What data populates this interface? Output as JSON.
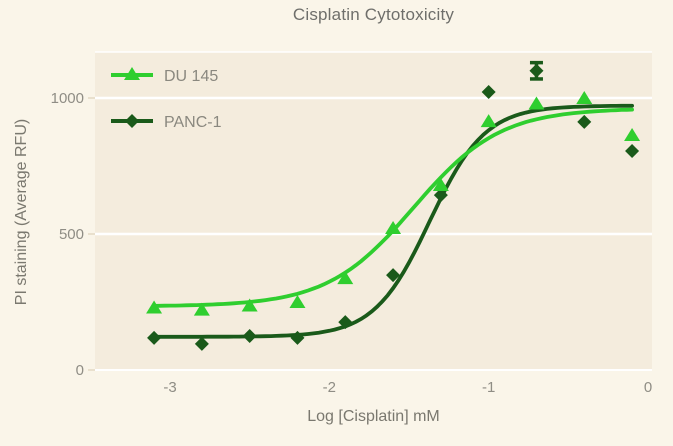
{
  "chart_data": {
    "type": "line",
    "title": "Cisplatin Cytotoxicity",
    "xlabel": "Log [Cisplatin] mM",
    "ylabel": "PI staining (Average RFU)",
    "xlim": [
      -3.47,
      0.03
    ],
    "ylim": [
      0,
      1170
    ],
    "x_ticks": [
      "-3",
      "-2",
      "-1",
      "0"
    ],
    "x_tick_values": [
      -3,
      -2,
      -1,
      0
    ],
    "y_ticks": [
      "0",
      "500",
      "1000"
    ],
    "y_tick_values": [
      0,
      500,
      1000
    ],
    "grid": true,
    "legend_position": "inside-top-left",
    "colors": {
      "page_background": "#faf5e9",
      "plot_background": "#f4ecdd",
      "gridline": "#ffffff",
      "title_text": "#6f6f6b",
      "tick_text": "#8f8d85",
      "legend_text": "#8a887f"
    },
    "series": [
      {
        "name": "PANC-1",
        "marker": "diamond",
        "color": "#1a5a1a",
        "x": [
          -3.1,
          -2.8,
          -2.5,
          -2.2,
          -1.9,
          -1.6,
          -1.3,
          -1.0,
          -0.7,
          -0.4,
          -0.1
        ],
        "values": [
          118,
          96,
          125,
          118,
          176,
          349,
          643,
          1022,
          1100,
          912,
          805
        ],
        "error_bars": [
          {
            "x": -0.7,
            "value": 1100,
            "plus_minus": 30
          }
        ],
        "fit_curve": {
          "model": "4PL",
          "bottom": 122,
          "top": 972,
          "log_ec50": -1.37,
          "hill": 2.5,
          "x_range": [
            -3.1,
            -0.1
          ]
        }
      },
      {
        "name": "DU 145",
        "marker": "triangle",
        "color": "#2fce2f",
        "x": [
          -3.1,
          -2.8,
          -2.5,
          -2.2,
          -1.9,
          -1.6,
          -1.3,
          -1.0,
          -0.7,
          -0.4,
          -0.1
        ],
        "values": [
          230,
          222,
          237,
          250,
          338,
          522,
          680,
          915,
          980,
          1000,
          864
        ],
        "error_bars": [],
        "fit_curve": {
          "model": "4PL",
          "bottom": 234,
          "top": 962,
          "log_ec50": -1.47,
          "hill": 1.6,
          "x_range": [
            -3.1,
            -0.1
          ]
        }
      }
    ],
    "legend_order": [
      "DU 145",
      "PANC-1"
    ]
  }
}
